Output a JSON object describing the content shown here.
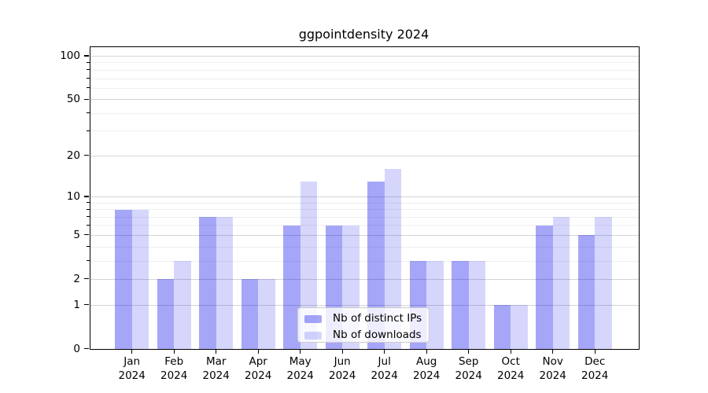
{
  "title": "ggpointdensity 2024",
  "chart_data": {
    "type": "bar",
    "title": "ggpointdensity 2024",
    "categories": [
      "Jan",
      "Feb",
      "Mar",
      "Apr",
      "May",
      "Jun",
      "Jul",
      "Aug",
      "Sep",
      "Oct",
      "Nov",
      "Dec"
    ],
    "year_label": "2024",
    "series": [
      {
        "name": "Nb of distinct IPs",
        "color": "rgba(0,0,235,0.35)",
        "solid_color": "#a6a6f8",
        "values": [
          8,
          2,
          7,
          2,
          6,
          6,
          13,
          3,
          3,
          1,
          6,
          5
        ]
      },
      {
        "name": "Nb of downloads",
        "color": "rgba(0,0,235,0.16)",
        "solid_color": "#d8d8f7",
        "values": [
          8,
          3,
          7,
          2,
          13,
          6,
          16,
          3,
          3,
          1,
          7,
          7
        ]
      }
    ],
    "yscale": "log1p",
    "ylim_bottom": 0,
    "y_major_ticks": [
      0,
      1,
      2,
      5,
      10,
      20,
      50,
      100
    ],
    "y_minor_ticks": [
      3,
      4,
      6,
      7,
      8,
      9,
      30,
      40,
      60,
      70,
      80,
      90
    ],
    "grid": true,
    "legend_position": "lower-center-inside",
    "colors": {
      "major_grid": "#d4d4d4",
      "minor_grid": "#efefef",
      "axis": "#000000",
      "legend_border": "#cccccc"
    }
  }
}
